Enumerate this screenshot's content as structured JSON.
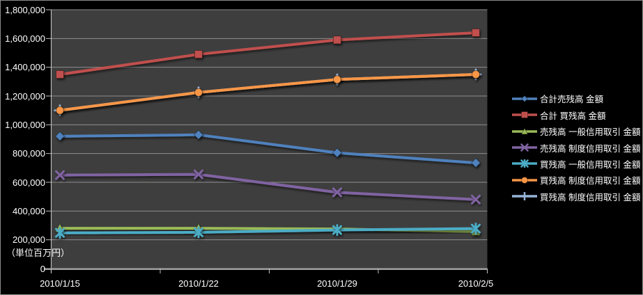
{
  "window": {
    "background": "#000000",
    "border_color": "#8C8C8C"
  },
  "axis": {
    "y_labels": [
      "1,800,000",
      "1,600,000",
      "1,400,000",
      "1,200,000",
      "1,000,000",
      "800,000",
      "600,000",
      "400,000",
      "200,000",
      "0"
    ],
    "unit_label": "（単位百万円）"
  },
  "chart_data": {
    "type": "line",
    "title": "",
    "categories": [
      "2010/1/15",
      "2010/1/22",
      "2010/1/29",
      "2010/2/5"
    ],
    "xlabel": "",
    "ylabel": "（単位百万円）",
    "ylim": [
      0,
      1800000
    ],
    "y_step": 200000,
    "grid": true,
    "legend_position": "right",
    "plot_bg": "#3E3E3E",
    "gridline_color": "#8F8F8F",
    "axis_color": "#BFBFBF",
    "baseline_color": "#9C9C9C",
    "text_color": "#FFFFFF",
    "series": [
      {
        "name": "合計売残高 金額",
        "marker": "diamond",
        "color": "#4F81BD",
        "values": [
          920000,
          930000,
          805000,
          735000
        ]
      },
      {
        "name": "合計 買残高 金額",
        "marker": "square",
        "color": "#C0504D",
        "values": [
          1350000,
          1490000,
          1590000,
          1640000
        ]
      },
      {
        "name": "売残高 一般信用取引 金額",
        "marker": "triangle",
        "color": "#9BBB59",
        "values": [
          280000,
          280000,
          275000,
          258000
        ]
      },
      {
        "name": "売残高 制度信用取引 金額",
        "marker": "x",
        "color": "#8064A2",
        "values": [
          650000,
          655000,
          530000,
          480000
        ]
      },
      {
        "name": "買残高 一般信用取引 金額",
        "marker": "star",
        "color": "#4BACC6",
        "values": [
          248000,
          252000,
          268000,
          278000
        ]
      },
      {
        "name": "買残高 制度信用取引 金額",
        "marker": "circle",
        "color": "#F79646",
        "values": [
          1100000,
          1225000,
          1315000,
          1350000
        ]
      },
      {
        "name": "買残高 制度信用取引 金額",
        "marker": "plus",
        "color": "#95B3D7",
        "values": [
          1100000,
          1225000,
          1315000,
          1350000
        ],
        "overlapped": true
      }
    ]
  }
}
